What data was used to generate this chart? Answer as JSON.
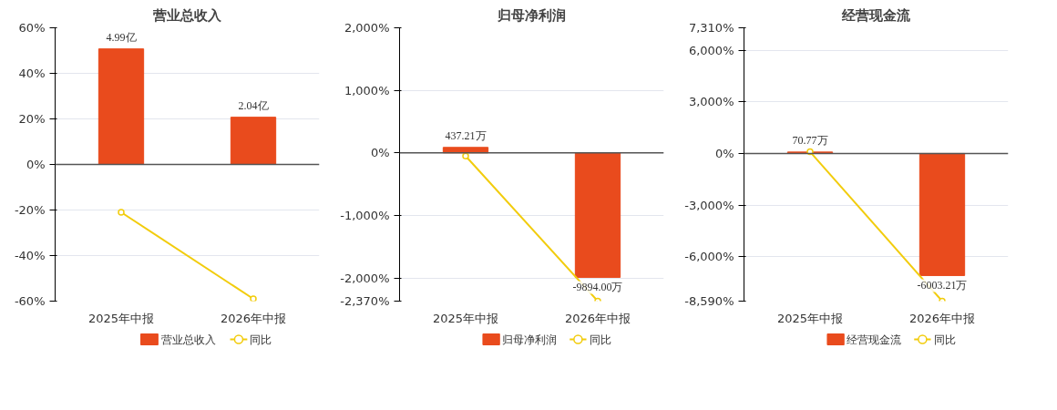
{
  "chart_data": [
    {
      "type": "bar",
      "title": "营业总收入",
      "categories": [
        "2025年中报",
        "2026年中报"
      ],
      "ylim": [
        -60,
        60
      ],
      "yticks": [
        {
          "value": 60,
          "label": "60%"
        },
        {
          "value": 40,
          "label": "40%"
        },
        {
          "value": 20,
          "label": "20%"
        },
        {
          "value": 0,
          "label": "0%"
        },
        {
          "value": -20,
          "label": "-20%"
        },
        {
          "value": -40,
          "label": "-40%"
        },
        {
          "value": -60,
          "label": "-60%"
        }
      ],
      "y2lim": [
        -5.9,
        5.9
      ],
      "grid": "y",
      "legend": "bottom",
      "series": [
        {
          "name": "营业总收入",
          "axis": "y2",
          "color": "#e94b1d",
          "values": [
            4.99,
            2.04
          ],
          "value_labels": [
            "4.99亿",
            "2.04亿"
          ]
        },
        {
          "name": "同比",
          "type": "line",
          "color": "#f2cc0c",
          "marker": "circle",
          "values": [
            -21,
            -59
          ]
        }
      ]
    },
    {
      "type": "bar",
      "title": "归母净利润",
      "categories": [
        "2025年中报",
        "2026年中报"
      ],
      "ylim": [
        -2370,
        2000
      ],
      "yticks": [
        {
          "value": 2000,
          "label": "2,000%"
        },
        {
          "value": 1000,
          "label": "1,000%"
        },
        {
          "value": 0,
          "label": "0%"
        },
        {
          "value": -1000,
          "label": "-1,000%"
        },
        {
          "value": -2000,
          "label": "-2,000%"
        },
        {
          "value": -2370,
          "label": "-2,370%"
        }
      ],
      "y2lim": [
        -11780,
        9940
      ],
      "grid": "y",
      "legend": "bottom",
      "series": [
        {
          "name": "归母净利润",
          "axis": "y2",
          "color": "#e94b1d",
          "values": [
            437.21,
            -9894.0
          ],
          "value_labels": [
            "437.21万",
            "-9894.00万"
          ]
        },
        {
          "name": "同比",
          "type": "line",
          "color": "#f2cc0c",
          "marker": "circle",
          "values": [
            -50,
            -2370
          ]
        }
      ]
    },
    {
      "type": "bar",
      "title": "经营现金流",
      "categories": [
        "2025年中报",
        "2026年中报"
      ],
      "ylim": [
        -8590,
        7310
      ],
      "yticks": [
        {
          "value": 7310,
          "label": "7,310%"
        },
        {
          "value": 6000,
          "label": "6,000%"
        },
        {
          "value": 3000,
          "label": "3,000%"
        },
        {
          "value": 0,
          "label": "0%"
        },
        {
          "value": -3000,
          "label": "-3,000%"
        },
        {
          "value": -6000,
          "label": "-6,000%"
        },
        {
          "value": -8590,
          "label": "-8,590%"
        }
      ],
      "y2lim": [
        -7260,
        6180
      ],
      "grid": "y",
      "legend": "bottom",
      "series": [
        {
          "name": "经营现金流",
          "axis": "y2",
          "color": "#e94b1d",
          "values": [
            70.77,
            -6003.21
          ],
          "value_labels": [
            "70.77万",
            "-6003.21万"
          ]
        },
        {
          "name": "同比",
          "type": "line",
          "color": "#f2cc0c",
          "marker": "circle",
          "values": [
            100,
            -8590
          ]
        }
      ]
    }
  ]
}
